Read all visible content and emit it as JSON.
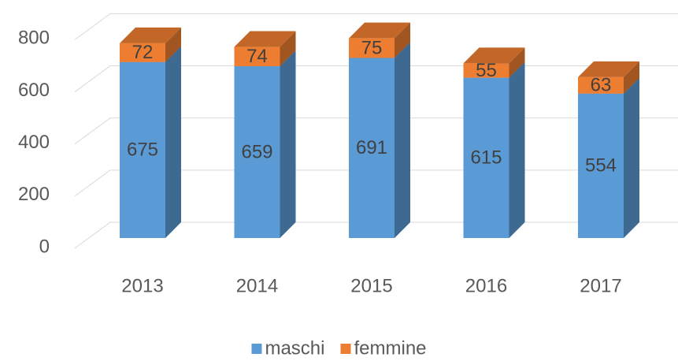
{
  "chart_data": {
    "type": "bar3d_stacked",
    "categories": [
      "2013",
      "2014",
      "2015",
      "2016",
      "2017"
    ],
    "series": [
      {
        "name": "maschi",
        "color": "#5b9bd5",
        "values": [
          675,
          659,
          691,
          615,
          554
        ]
      },
      {
        "name": "femmine",
        "color": "#ed7d31",
        "values": [
          72,
          74,
          75,
          55,
          63
        ]
      }
    ],
    "ylim": [
      0,
      800
    ],
    "yticks": [
      0,
      200,
      400,
      600,
      800
    ],
    "grid": true,
    "legend": "bottom"
  }
}
